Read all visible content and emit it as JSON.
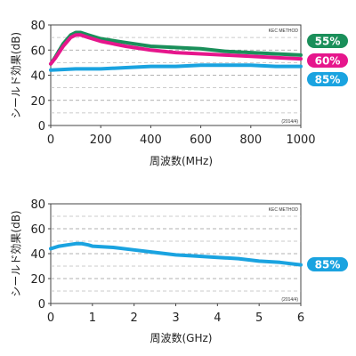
{
  "chart_data": [
    {
      "type": "line",
      "method_label": "KEC METHOD",
      "date_label": "(2014/4)",
      "xlabel": "周波数(MHz)",
      "ylabel": "シールド効果(dB)",
      "xlim": [
        0,
        1000
      ],
      "ylim": [
        0,
        80
      ],
      "x_ticks": [
        "0",
        "200",
        "400",
        "600",
        "800",
        "1000"
      ],
      "y_ticks": [
        "0",
        "20",
        "40",
        "60",
        "80"
      ],
      "grid": "dashed horizontal every 10 dB",
      "series": [
        {
          "name": "55%",
          "color": "#1a8f5a",
          "x": [
            0,
            20,
            50,
            80,
            100,
            120,
            150,
            200,
            300,
            400,
            500,
            600,
            700,
            800,
            900,
            1000
          ],
          "values": [
            49,
            55,
            65,
            72,
            74,
            74,
            72,
            69,
            66,
            63,
            62,
            61,
            59,
            58,
            57,
            56
          ]
        },
        {
          "name": "60%",
          "color": "#e6168c",
          "x": [
            0,
            20,
            50,
            80,
            100,
            120,
            150,
            200,
            300,
            400,
            500,
            600,
            700,
            800,
            900,
            1000
          ],
          "values": [
            49,
            54,
            63,
            70,
            72,
            72,
            70,
            67,
            63,
            60,
            58,
            57,
            56,
            55,
            54,
            53
          ]
        },
        {
          "name": "85%",
          "color": "#1aa3e0",
          "x": [
            0,
            100,
            200,
            300,
            400,
            500,
            600,
            700,
            800,
            900,
            1000
          ],
          "values": [
            44,
            45,
            45,
            46,
            47,
            47,
            48,
            48,
            48,
            47,
            47
          ]
        }
      ]
    },
    {
      "type": "line",
      "method_label": "KEC METHOD",
      "date_label": "(2014/4)",
      "xlabel": "周波数(GHz)",
      "ylabel": "シールド効果(dB)",
      "xlim": [
        0,
        6
      ],
      "ylim": [
        0,
        80
      ],
      "x_ticks": [
        "0",
        "1",
        "2",
        "3",
        "4",
        "5",
        "6"
      ],
      "y_ticks": [
        "0",
        "20",
        "40",
        "60",
        "80"
      ],
      "grid": "dashed horizontal every 10 dB",
      "series": [
        {
          "name": "85%",
          "color": "#1aa3e0",
          "x": [
            0,
            0.2,
            0.4,
            0.6,
            0.75,
            0.9,
            1.0,
            1.5,
            2.0,
            2.5,
            3.0,
            3.5,
            4.0,
            4.5,
            5.0,
            5.5,
            6.0
          ],
          "values": [
            44,
            46,
            47,
            48,
            48,
            47,
            46,
            45,
            43,
            41,
            39,
            38,
            37,
            36,
            34,
            33,
            31
          ]
        }
      ]
    }
  ]
}
